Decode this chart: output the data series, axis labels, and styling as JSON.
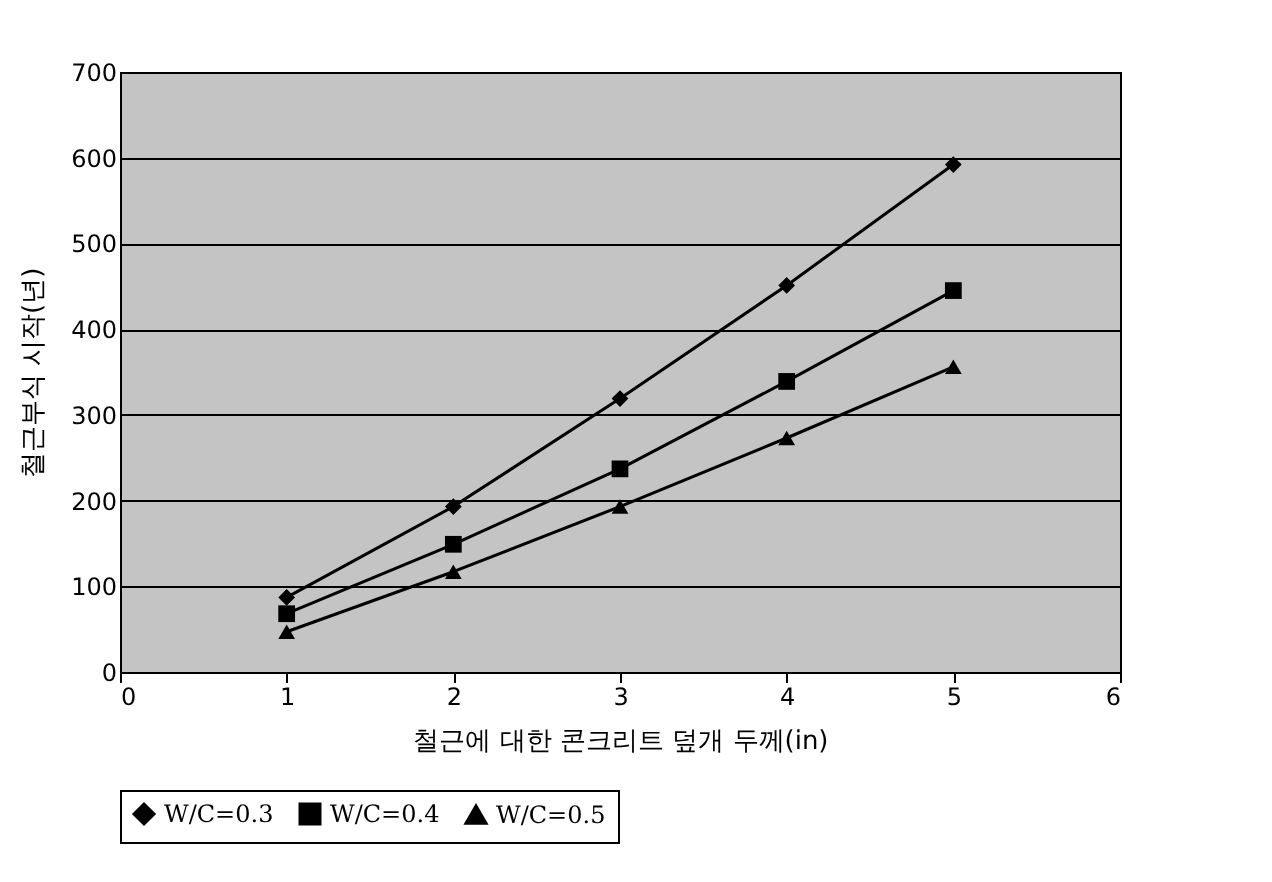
{
  "chart_data": {
    "type": "line",
    "xlabel": "철근에 대한 콘크리트 덮개 두께(in)",
    "ylabel": "철근부식 시작(년)",
    "x": [
      1,
      2,
      3,
      4,
      5
    ],
    "series": [
      {
        "name": "W/C=0.3",
        "color": "#000000",
        "marker": "diamond",
        "values": [
          87,
          193,
          319,
          451,
          592
        ]
      },
      {
        "name": "W/C=0.4",
        "color": "#000000",
        "marker": "square",
        "values": [
          68,
          149,
          237,
          339,
          445
        ]
      },
      {
        "name": "W/C=0.5",
        "color": "#000000",
        "marker": "triangle",
        "values": [
          47,
          117,
          193,
          273,
          356
        ]
      }
    ],
    "xlim": [
      0,
      6
    ],
    "xticks": [
      0,
      1,
      2,
      3,
      4,
      5,
      6
    ],
    "ylim": [
      0,
      700
    ],
    "yticks": [
      0,
      100,
      200,
      300,
      400,
      500,
      600,
      700
    ],
    "grid": "y",
    "legend": "bottom",
    "line_style": "solid"
  }
}
